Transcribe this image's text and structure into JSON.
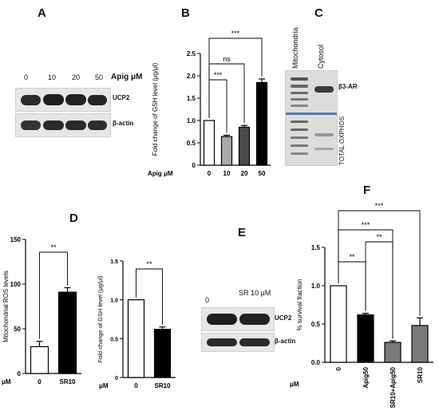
{
  "panels": {
    "A": {
      "letter": "A",
      "conc_label": "Apig μM",
      "concentrations": [
        "0",
        "10",
        "20",
        "50"
      ],
      "row1": "UCP2",
      "row2": "β-actin"
    },
    "B": {
      "letter": "B"
    },
    "C": {
      "letter": "C",
      "lane1": "Mitochondria",
      "lane2": "Cytosol",
      "label_top": "β3-AR",
      "label_bottom": "TOTAL OXPHOS"
    },
    "D": {
      "letter": "D"
    },
    "E": {
      "letter": "E",
      "lane0": "0",
      "lane1": "SR 10 μM",
      "row1": "UCP2",
      "row2": "β-actin"
    },
    "F": {
      "letter": "F"
    }
  },
  "chart_data": [
    {
      "panel": "B",
      "type": "bar",
      "ylabel": "Fold change of GSH level (μg/μl)",
      "xprefix": "Apig μM",
      "categories": [
        "0",
        "10",
        "20",
        "50"
      ],
      "values": [
        1.0,
        0.64,
        0.85,
        1.85
      ],
      "errors": [
        0.0,
        0.03,
        0.04,
        0.08
      ],
      "colors": [
        "#ffffff",
        "#a9a9a9",
        "#4a4a4a",
        "#000000"
      ],
      "ylim": [
        0,
        2.5
      ],
      "yticks": [
        "0",
        "0.5",
        "1.0",
        "1.5",
        "2.0",
        "2.5"
      ],
      "significance": [
        {
          "from": 0,
          "to": 1,
          "label": "***"
        },
        {
          "from": 0,
          "to": 2,
          "label": "ns"
        },
        {
          "from": 0,
          "to": 3,
          "label": "***"
        }
      ]
    },
    {
      "panel": "D-left",
      "type": "bar",
      "ylabel": "Mitochondrial ROS levels",
      "xprefix": "μM",
      "categories": [
        "0",
        "SR10"
      ],
      "values": [
        30,
        91
      ],
      "errors": [
        6,
        5
      ],
      "colors": [
        "#ffffff",
        "#000000"
      ],
      "ylim": [
        0,
        150
      ],
      "yticks": [
        "0",
        "50",
        "100",
        "150"
      ],
      "significance": [
        {
          "from": 0,
          "to": 1,
          "label": "**"
        }
      ]
    },
    {
      "panel": "D-right",
      "type": "bar",
      "ylabel": "Fold change of GSH level (μg/μl)",
      "xprefix": "μM",
      "categories": [
        "0",
        "SR10"
      ],
      "values": [
        1.0,
        0.62
      ],
      "errors": [
        0.0,
        0.03
      ],
      "colors": [
        "#ffffff",
        "#000000"
      ],
      "ylim": [
        0,
        1.5
      ],
      "yticks": [
        "0",
        "0.5",
        "1.0",
        "1.5"
      ],
      "significance": [
        {
          "from": 0,
          "to": 1,
          "label": "**"
        }
      ]
    },
    {
      "panel": "F",
      "type": "bar",
      "ylabel": "% survival fraction",
      "xprefix": "μM",
      "categories": [
        "0",
        "Apig50",
        "SR10+Apig50",
        "SR10"
      ],
      "values": [
        1.0,
        0.62,
        0.26,
        0.48
      ],
      "errors": [
        0.0,
        0.02,
        0.02,
        0.1
      ],
      "colors": [
        "#ffffff",
        "#000000",
        "#7a7a7a",
        "#7a7a7a"
      ],
      "ylim": [
        0,
        1.5
      ],
      "yticks": [
        "0.0",
        "0.5",
        "1.0",
        "1.5"
      ],
      "significance": [
        {
          "from": 0,
          "to": 1,
          "label": "**"
        },
        {
          "from": 1,
          "to": 2,
          "label": "**"
        },
        {
          "from": 0,
          "to": 2,
          "label": "***"
        },
        {
          "from": 0,
          "to": 3,
          "label": "***"
        }
      ]
    }
  ]
}
